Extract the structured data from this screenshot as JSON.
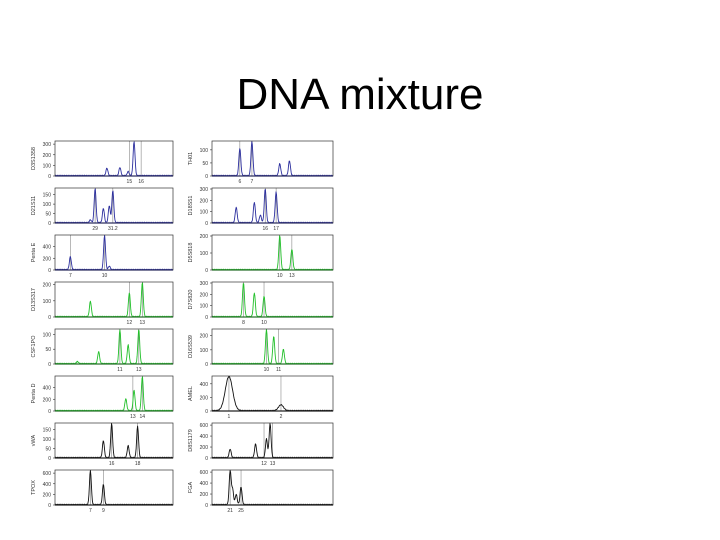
{
  "title": "DNA mixture",
  "colors": {
    "blue": "#2c2f9e",
    "green": "#22c02a",
    "black": "#111111",
    "frame": "#333333",
    "marker": "#888888"
  },
  "chart_data": {
    "type": "line",
    "title": "DNA mixture",
    "description": "STR electropherogram panels (16 loci) showing a DNA mixture",
    "panels": [
      {
        "col": 0,
        "row": 0,
        "locus": "D3S1358",
        "dye": "blue",
        "yticks": [
          0,
          100,
          200,
          300
        ],
        "ymax": 320,
        "alleles": [
          "15",
          "16"
        ],
        "allele_x": [
          0.63,
          0.73
        ],
        "peaks": [
          [
            0.44,
            0.22
          ],
          [
            0.55,
            0.24
          ],
          [
            0.67,
            1.0
          ],
          [
            0.62,
            0.12
          ]
        ]
      },
      {
        "col": 0,
        "row": 1,
        "locus": "D21S11",
        "dye": "blue",
        "yticks": [
          0,
          50,
          100,
          150
        ],
        "ymax": 180,
        "alleles": [
          "29",
          "31.2"
        ],
        "allele_x": [
          0.34,
          0.49
        ],
        "peaks": [
          [
            0.34,
            1.0
          ],
          [
            0.41,
            0.42
          ],
          [
            0.46,
            0.5
          ],
          [
            0.49,
            0.95
          ],
          [
            0.3,
            0.08
          ]
        ]
      },
      {
        "col": 0,
        "row": 2,
        "locus": "Penta E",
        "dye": "blue",
        "yticks": [
          0,
          200,
          400
        ],
        "ymax": 580,
        "alleles": [
          "7",
          "10"
        ],
        "allele_x": [
          0.13,
          0.42
        ],
        "peaks": [
          [
            0.13,
            0.38
          ],
          [
            0.42,
            1.0
          ],
          [
            0.46,
            0.1
          ]
        ]
      },
      {
        "col": 0,
        "row": 3,
        "locus": "D13S317",
        "dye": "green",
        "yticks": [
          0,
          100,
          200
        ],
        "ymax": 210,
        "alleles": [
          "12",
          "13"
        ],
        "allele_x": [
          0.63,
          0.74
        ],
        "peaks": [
          [
            0.3,
            0.45
          ],
          [
            0.63,
            0.7
          ],
          [
            0.74,
            1.0
          ]
        ]
      },
      {
        "col": 0,
        "row": 4,
        "locus": "CSF1PO",
        "dye": "green",
        "yticks": [
          0,
          50,
          100
        ],
        "ymax": 115,
        "alleles": [
          "11",
          "13"
        ],
        "allele_x": [
          0.55,
          0.71
        ],
        "peaks": [
          [
            0.37,
            0.35
          ],
          [
            0.55,
            1.0
          ],
          [
            0.62,
            0.55
          ],
          [
            0.71,
            1.0
          ],
          [
            0.19,
            0.06
          ]
        ]
      },
      {
        "col": 0,
        "row": 5,
        "locus": "Penta D",
        "dye": "green",
        "yticks": [
          0,
          200,
          400
        ],
        "ymax": 580,
        "alleles": [
          "13",
          "14"
        ],
        "allele_x": [
          0.66,
          0.74
        ],
        "peaks": [
          [
            0.6,
            0.35
          ],
          [
            0.67,
            0.6
          ],
          [
            0.74,
            1.0
          ]
        ]
      },
      {
        "col": 0,
        "row": 6,
        "locus": "vWA",
        "dye": "black",
        "yticks": [
          0,
          50,
          100,
          150
        ],
        "ymax": 180,
        "alleles": [
          "16",
          "18"
        ],
        "allele_x": [
          0.48,
          0.7
        ],
        "peaks": [
          [
            0.41,
            0.5
          ],
          [
            0.48,
            1.0
          ],
          [
            0.62,
            0.35
          ],
          [
            0.7,
            0.92
          ]
        ]
      },
      {
        "col": 0,
        "row": 7,
        "locus": "TPOX",
        "dye": "black",
        "yticks": [
          0,
          200,
          400,
          600
        ],
        "ymax": 640,
        "alleles": [
          "7",
          "9"
        ],
        "allele_x": [
          0.3,
          0.41
        ],
        "peaks": [
          [
            0.3,
            1.0
          ],
          [
            0.41,
            0.6
          ]
        ]
      },
      {
        "col": 1,
        "row": 0,
        "locus": "TH01",
        "dye": "blue",
        "yticks": [
          0,
          50,
          100
        ],
        "ymax": 130,
        "alleles": [
          "6",
          "7"
        ],
        "allele_x": [
          0.23,
          0.33
        ],
        "peaks": [
          [
            0.23,
            0.8
          ],
          [
            0.33,
            1.0
          ],
          [
            0.56,
            0.35
          ],
          [
            0.64,
            0.44
          ]
        ]
      },
      {
        "col": 1,
        "row": 1,
        "locus": "D18S51",
        "dye": "blue",
        "yticks": [
          0,
          100,
          200,
          300
        ],
        "ymax": 300,
        "alleles": [
          "16",
          "17"
        ],
        "allele_x": [
          0.44,
          0.53
        ],
        "peaks": [
          [
            0.2,
            0.45
          ],
          [
            0.35,
            0.6
          ],
          [
            0.44,
            1.0
          ],
          [
            0.53,
            0.9
          ],
          [
            0.4,
            0.22
          ]
        ]
      },
      {
        "col": 1,
        "row": 2,
        "locus": "D5S818",
        "dye": "green",
        "yticks": [
          0,
          100,
          200
        ],
        "ymax": 200,
        "alleles": [
          "10",
          "13"
        ],
        "allele_x": [
          0.56,
          0.66
        ],
        "peaks": [
          [
            0.56,
            1.0
          ],
          [
            0.66,
            0.6
          ]
        ]
      },
      {
        "col": 1,
        "row": 3,
        "locus": "D7S820",
        "dye": "green",
        "yticks": [
          0,
          100,
          200,
          300
        ],
        "ymax": 300,
        "alleles": [
          "8",
          "10"
        ],
        "allele_x": [
          0.26,
          0.43
        ],
        "peaks": [
          [
            0.26,
            1.0
          ],
          [
            0.35,
            0.7
          ],
          [
            0.43,
            0.6
          ]
        ]
      },
      {
        "col": 1,
        "row": 4,
        "locus": "D16S539",
        "dye": "green",
        "yticks": [
          0,
          100,
          200
        ],
        "ymax": 240,
        "alleles": [
          "10",
          "11"
        ],
        "allele_x": [
          0.45,
          0.55
        ],
        "peaks": [
          [
            0.45,
            1.0
          ],
          [
            0.51,
            0.8
          ],
          [
            0.59,
            0.42
          ]
        ]
      },
      {
        "col": 1,
        "row": 5,
        "locus": "AMEL",
        "dye": "black",
        "yticks": [
          0,
          200,
          400
        ],
        "ymax": 500,
        "alleles": [
          "1",
          "2"
        ],
        "allele_x": [
          0.14,
          0.57
        ],
        "peaks": [
          [
            0.14,
            1.0
          ],
          [
            0.57,
            0.17
          ]
        ],
        "wide": true
      },
      {
        "col": 1,
        "row": 6,
        "locus": "D8S1179",
        "dye": "black",
        "yticks": [
          0,
          200,
          400,
          600
        ],
        "ymax": 620,
        "alleles": [
          "12",
          "13"
        ],
        "allele_x": [
          0.43,
          0.5
        ],
        "peaks": [
          [
            0.15,
            0.25
          ],
          [
            0.36,
            0.4
          ],
          [
            0.45,
            0.55
          ],
          [
            0.48,
            1.0
          ]
        ]
      },
      {
        "col": 1,
        "row": 7,
        "locus": "FGA",
        "dye": "black",
        "yticks": [
          0,
          200,
          400,
          600
        ],
        "ymax": 620,
        "alleles": [
          "21",
          "25"
        ],
        "allele_x": [
          0.15,
          0.24
        ],
        "peaks": [
          [
            0.15,
            1.0
          ],
          [
            0.17,
            0.45
          ],
          [
            0.2,
            0.3
          ],
          [
            0.24,
            0.52
          ]
        ]
      }
    ]
  }
}
